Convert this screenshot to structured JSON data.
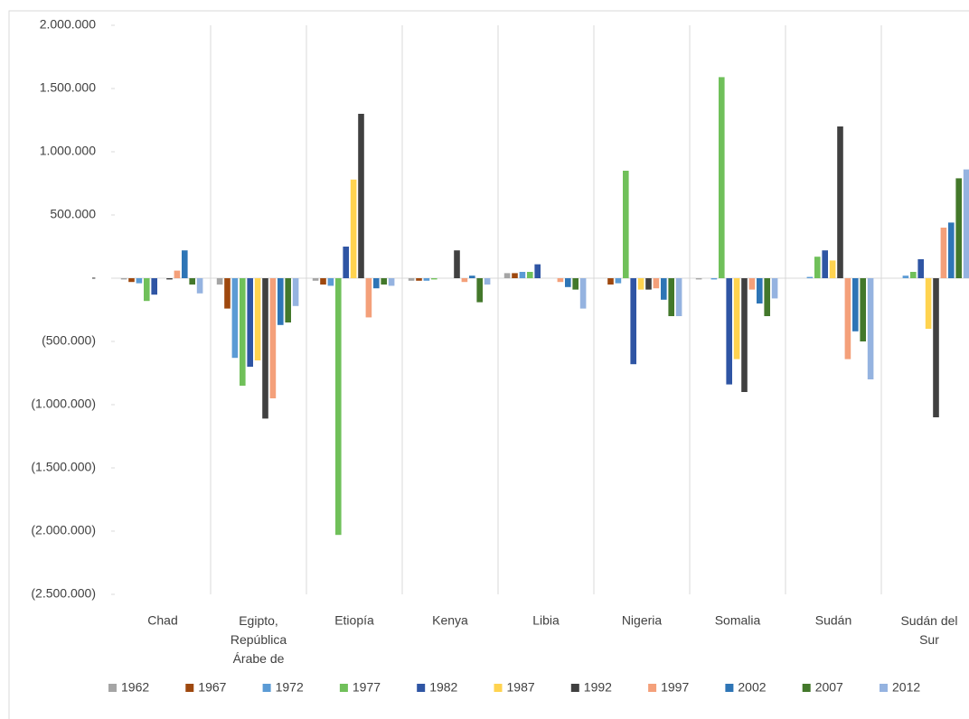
{
  "chart_data": {
    "type": "bar",
    "categories": [
      "Chad",
      "Egipto, República Árabe de",
      "Etiopía",
      "Kenya",
      "Libia",
      "Nigeria",
      "Somalia",
      "Sudán",
      "Sudán del Sur"
    ],
    "series": [
      {
        "name": "1962",
        "color": "#a5a5a5",
        "values": [
          -10000,
          -50000,
          -20000,
          -20000,
          40000,
          0,
          -10000,
          0,
          0
        ]
      },
      {
        "name": "1967",
        "color": "#9e480e",
        "values": [
          -30000,
          -240000,
          -50000,
          -20000,
          40000,
          -50000,
          0,
          0,
          0
        ]
      },
      {
        "name": "1972",
        "color": "#5b9bd5",
        "values": [
          -40000,
          -630000,
          -60000,
          -20000,
          50000,
          -40000,
          -10000,
          10000,
          20000
        ]
      },
      {
        "name": "1977",
        "color": "#70c05a",
        "values": [
          -180000,
          -850000,
          -2030000,
          -10000,
          50000,
          850000,
          1590000,
          170000,
          50000
        ]
      },
      {
        "name": "1982",
        "color": "#2f55a4",
        "values": [
          -130000,
          -700000,
          250000,
          0,
          110000,
          -680000,
          -840000,
          220000,
          150000
        ]
      },
      {
        "name": "1987",
        "color": "#ffd34f",
        "values": [
          0,
          -650000,
          780000,
          0,
          0,
          -90000,
          -640000,
          140000,
          -400000
        ]
      },
      {
        "name": "1992",
        "color": "#404040",
        "values": [
          -10000,
          -1110000,
          1300000,
          220000,
          0,
          -90000,
          -900000,
          1200000,
          -1100000
        ]
      },
      {
        "name": "1997",
        "color": "#f4a07a",
        "values": [
          60000,
          -950000,
          -310000,
          -30000,
          -30000,
          -80000,
          -90000,
          -640000,
          400000
        ]
      },
      {
        "name": "2002",
        "color": "#2e75b6",
        "values": [
          220000,
          -370000,
          -80000,
          20000,
          -70000,
          -170000,
          -200000,
          -420000,
          440000
        ]
      },
      {
        "name": "2007",
        "color": "#43782b",
        "values": [
          -50000,
          -350000,
          -50000,
          -190000,
          -90000,
          -300000,
          -300000,
          -500000,
          790000
        ]
      },
      {
        "name": "2012",
        "color": "#95b3e0",
        "values": [
          -120000,
          -220000,
          -60000,
          -50000,
          -240000,
          -300000,
          -160000,
          -800000,
          860000
        ]
      }
    ],
    "ylim": [
      -2500000,
      2000000
    ],
    "yticks": [
      {
        "value": -2500000,
        "label": "(2.500.000)"
      },
      {
        "value": -2000000,
        "label": "(2.000.000)"
      },
      {
        "value": -1500000,
        "label": "(1.500.000)"
      },
      {
        "value": -1000000,
        "label": "(1.000.000)"
      },
      {
        "value": -500000,
        "label": "(500.000)"
      },
      {
        "value": 0,
        "label": "-"
      },
      {
        "value": 500000,
        "label": "500.000"
      },
      {
        "value": 1000000,
        "label": "1.000.000"
      },
      {
        "value": 1500000,
        "label": "1.500.000"
      },
      {
        "value": 2000000,
        "label": "2.000.000"
      }
    ],
    "grid": true,
    "legend": "bottom"
  }
}
